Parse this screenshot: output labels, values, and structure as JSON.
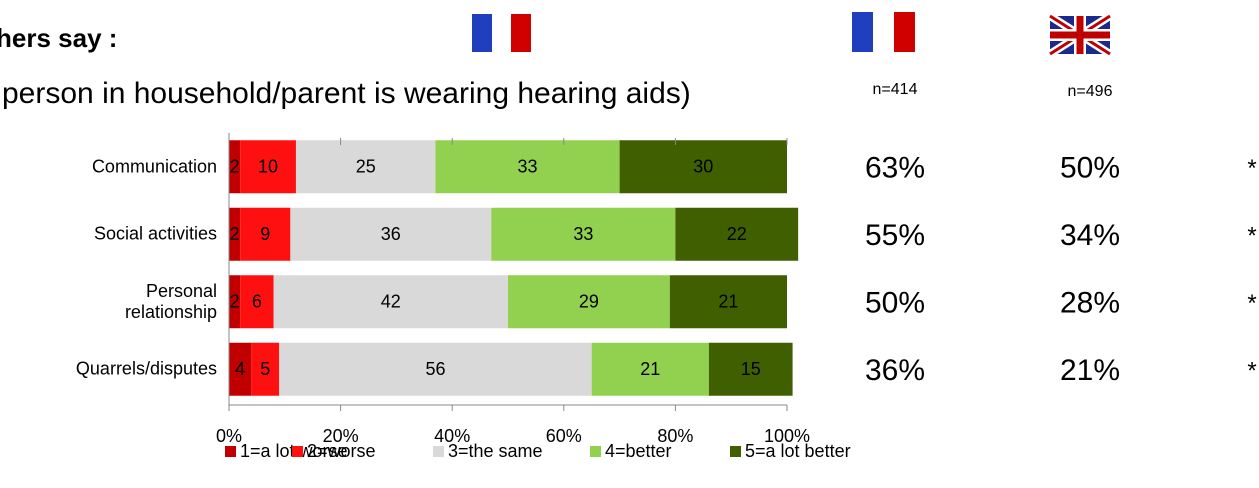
{
  "chart_data": {
    "type": "stacked-bar-horizontal",
    "title": "hers say :",
    "subtitle": "person in household/parent is wearing hearing aids)",
    "categories": [
      "Communication",
      "Social activities",
      "Personal\nrelationship",
      "Quarrels/disputes"
    ],
    "series": [
      {
        "name": "1=a lot worse",
        "color": "#c00000",
        "values": [
          2,
          2,
          2,
          4
        ]
      },
      {
        "name": "2=worse",
        "color": "#ff1010",
        "values": [
          10,
          9,
          6,
          5
        ]
      },
      {
        "name": "3=the same",
        "color": "#d9d9d9",
        "values": [
          25,
          36,
          42,
          56
        ]
      },
      {
        "name": "4=better",
        "color": "#92d050",
        "values": [
          33,
          33,
          29,
          21
        ]
      },
      {
        "name": "5=a lot better",
        "color": "#3f5f00",
        "values": [
          30,
          22,
          21,
          15
        ]
      }
    ],
    "xlim": [
      0,
      100
    ],
    "xticks": [
      {
        "value": 0,
        "label": "0%"
      },
      {
        "value": 20,
        "label": "20%"
      },
      {
        "value": 40,
        "label": "40%"
      },
      {
        "value": 60,
        "label": "60%"
      },
      {
        "value": 80,
        "label": "80%"
      },
      {
        "value": 100,
        "label": "100%"
      }
    ],
    "legend": "bottom"
  },
  "side_table": {
    "headers": [
      "n=414",
      "n=496"
    ],
    "rows": [
      [
        "63%",
        "50%",
        "*"
      ],
      [
        "55%",
        "34%",
        "*"
      ],
      [
        "50%",
        "28%",
        "*"
      ],
      [
        "36%",
        "21%",
        "*"
      ]
    ]
  }
}
